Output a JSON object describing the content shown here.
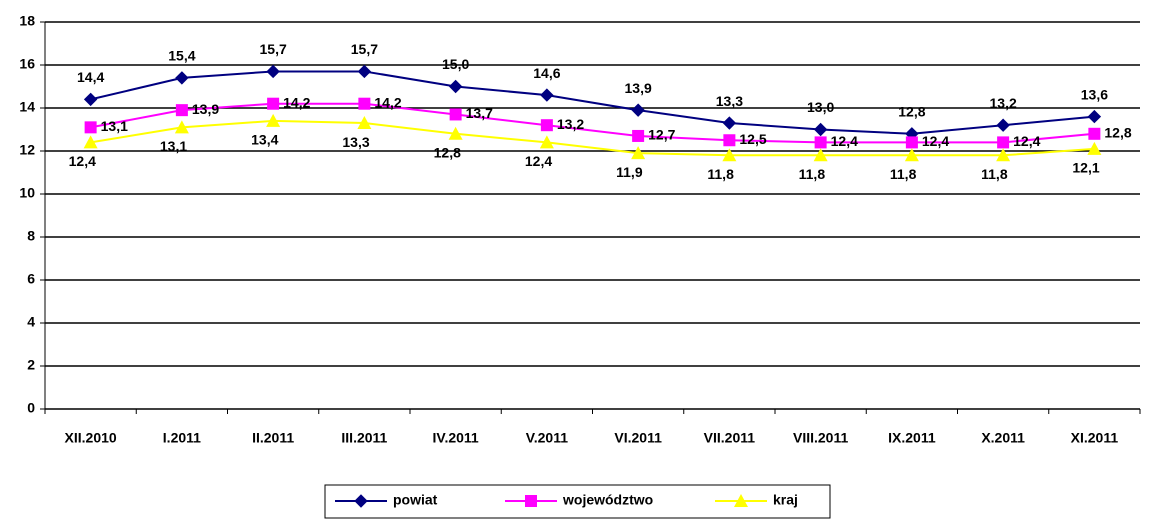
{
  "chart_data": {
    "type": "line",
    "categories": [
      "XII.2010",
      "I.2011",
      "II.2011",
      "III.2011",
      "IV.2011",
      "V.2011",
      "VI.2011",
      "VII.2011",
      "VIII.2011",
      "IX.2011",
      "X.2011",
      "XI.2011"
    ],
    "series": [
      {
        "name": "powiat",
        "color": "#000080",
        "marker": "diamond",
        "values": [
          14.4,
          15.4,
          15.7,
          15.7,
          15.0,
          14.6,
          13.9,
          13.3,
          13.0,
          12.8,
          13.2,
          13.6
        ],
        "value_labels": [
          "14,4",
          "15,4",
          "15,7",
          "15,7",
          "15,0",
          "14,6",
          "13,9",
          "13,3",
          "13,0",
          "12,8",
          "13,2",
          "13,6"
        ]
      },
      {
        "name": "województwo",
        "color": "#ff00ff",
        "marker": "square",
        "values": [
          13.1,
          13.9,
          14.2,
          14.2,
          13.7,
          13.2,
          12.7,
          12.5,
          12.4,
          12.4,
          12.4,
          12.8
        ],
        "value_labels": [
          "13,1",
          "13,9",
          "14,2",
          "14,2",
          "13,7",
          "13,2",
          "12,7",
          "12,5",
          "12,4",
          "12,4",
          "12,4",
          "12,8"
        ]
      },
      {
        "name": "kraj",
        "color": "#ffff00",
        "marker": "triangle",
        "values": [
          12.4,
          13.1,
          13.4,
          13.3,
          12.8,
          12.4,
          11.9,
          11.8,
          11.8,
          11.8,
          11.8,
          12.1
        ],
        "value_labels": [
          "12,4",
          "13,1",
          "13,4",
          "13,3",
          "12,8",
          "12,4",
          "11,9",
          "11,8",
          "11,8",
          "11,8",
          "11,8",
          "12,1"
        ]
      }
    ],
    "ylim": [
      0,
      18
    ],
    "yticks": [
      0,
      2,
      4,
      6,
      8,
      10,
      12,
      14,
      16,
      18
    ],
    "grid": true,
    "legend": "bottom"
  }
}
